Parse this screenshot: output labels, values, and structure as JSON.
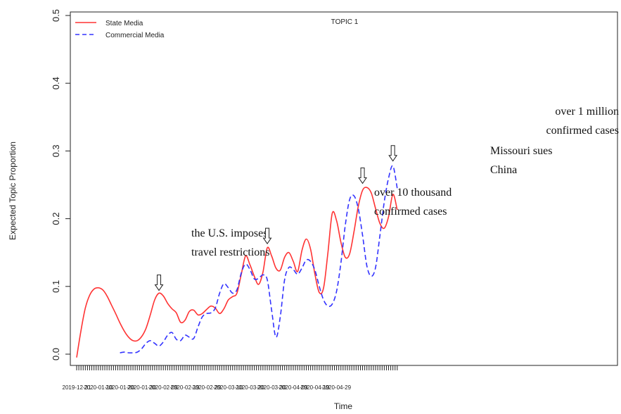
{
  "chart_data": {
    "type": "line",
    "title": "TOPIC 1",
    "xlabel": "Time",
    "ylabel": "Expected Topic Proportion",
    "ylim": [
      0.0,
      0.5
    ],
    "yticks": [
      "0.0",
      "0.1",
      "0.2",
      "0.3",
      "0.4",
      "0.5"
    ],
    "xticks": [
      "2019-12-31",
      "2020-01-10",
      "2020-01-20",
      "2020-01-30",
      "2020-02-09",
      "2020-02-19",
      "2020-02-29",
      "2020-03-10",
      "2020-03-20",
      "2020-03-30",
      "2020-04-09",
      "2020-04-19",
      "2020-04-29"
    ],
    "legend_position": "top-left",
    "series": [
      {
        "name": "State Media",
        "color": "#ff3333",
        "style": "solid",
        "points": [
          [
            "2019-12-31",
            -0.005
          ],
          [
            "2020-01-02",
            0.035
          ],
          [
            "2020-01-04",
            0.068
          ],
          [
            "2020-01-06",
            0.087
          ],
          [
            "2020-01-08",
            0.096
          ],
          [
            "2020-01-10",
            0.098
          ],
          [
            "2020-01-12",
            0.095
          ],
          [
            "2020-01-14",
            0.086
          ],
          [
            "2020-01-16",
            0.073
          ],
          [
            "2020-01-18",
            0.06
          ],
          [
            "2020-01-20",
            0.046
          ],
          [
            "2020-01-22",
            0.034
          ],
          [
            "2020-01-24",
            0.025
          ],
          [
            "2020-01-26",
            0.02
          ],
          [
            "2020-01-28",
            0.02
          ],
          [
            "2020-01-30",
            0.026
          ],
          [
            "2020-02-01",
            0.038
          ],
          [
            "2020-02-03",
            0.058
          ],
          [
            "2020-02-05",
            0.08
          ],
          [
            "2020-02-07",
            0.09
          ],
          [
            "2020-02-09",
            0.086
          ],
          [
            "2020-02-11",
            0.075
          ],
          [
            "2020-02-13",
            0.067
          ],
          [
            "2020-02-15",
            0.061
          ],
          [
            "2020-02-17",
            0.047
          ],
          [
            "2020-02-19",
            0.05
          ],
          [
            "2020-02-21",
            0.063
          ],
          [
            "2020-02-23",
            0.065
          ],
          [
            "2020-02-25",
            0.058
          ],
          [
            "2020-02-27",
            0.06
          ],
          [
            "2020-02-29",
            0.066
          ],
          [
            "2020-03-02",
            0.071
          ],
          [
            "2020-03-04",
            0.068
          ],
          [
            "2020-03-06",
            0.06
          ],
          [
            "2020-03-08",
            0.067
          ],
          [
            "2020-03-10",
            0.08
          ],
          [
            "2020-03-12",
            0.085
          ],
          [
            "2020-03-14",
            0.09
          ],
          [
            "2020-03-16",
            0.118
          ],
          [
            "2020-03-18",
            0.145
          ],
          [
            "2020-03-20",
            0.132
          ],
          [
            "2020-03-22",
            0.115
          ],
          [
            "2020-03-24",
            0.103
          ],
          [
            "2020-03-26",
            0.121
          ],
          [
            "2020-03-28",
            0.157
          ],
          [
            "2020-03-30",
            0.145
          ],
          [
            "2020-04-01",
            0.127
          ],
          [
            "2020-04-03",
            0.124
          ],
          [
            "2020-04-05",
            0.143
          ],
          [
            "2020-04-07",
            0.15
          ],
          [
            "2020-04-09",
            0.137
          ],
          [
            "2020-04-11",
            0.122
          ],
          [
            "2020-04-13",
            0.153
          ],
          [
            "2020-04-15",
            0.17
          ],
          [
            "2020-04-17",
            0.155
          ],
          [
            "2020-04-19",
            0.118
          ],
          [
            "2020-04-21",
            0.091
          ],
          [
            "2020-04-23",
            0.098
          ],
          [
            "2020-04-25",
            0.15
          ],
          [
            "2020-04-27",
            0.208
          ],
          [
            "2020-04-29",
            0.197
          ],
          [
            "2020-05-01",
            0.165
          ],
          [
            "2020-05-03",
            0.143
          ],
          [
            "2020-05-05",
            0.148
          ],
          [
            "2020-05-07",
            0.18
          ],
          [
            "2020-05-09",
            0.218
          ],
          [
            "2020-05-11",
            0.242
          ],
          [
            "2020-05-13",
            0.246
          ],
          [
            "2020-05-15",
            0.238
          ],
          [
            "2020-05-17",
            0.215
          ],
          [
            "2020-05-19",
            0.193
          ],
          [
            "2020-05-21",
            0.186
          ],
          [
            "2020-05-23",
            0.203
          ],
          [
            "2020-05-25",
            0.236
          ],
          [
            "2020-05-27",
            0.213
          ]
        ]
      },
      {
        "name": "Commercial Media",
        "color": "#3333ff",
        "style": "dashed",
        "points": [
          [
            "2020-01-20",
            0.002
          ],
          [
            "2020-01-22",
            0.003
          ],
          [
            "2020-01-24",
            0.002
          ],
          [
            "2020-01-26",
            0.002
          ],
          [
            "2020-01-28",
            0.003
          ],
          [
            "2020-01-30",
            0.008
          ],
          [
            "2020-02-01",
            0.016
          ],
          [
            "2020-02-03",
            0.02
          ],
          [
            "2020-02-05",
            0.016
          ],
          [
            "2020-02-07",
            0.012
          ],
          [
            "2020-02-09",
            0.018
          ],
          [
            "2020-02-11",
            0.028
          ],
          [
            "2020-02-13",
            0.032
          ],
          [
            "2020-02-15",
            0.022
          ],
          [
            "2020-02-17",
            0.02
          ],
          [
            "2020-02-19",
            0.028
          ],
          [
            "2020-02-21",
            0.025
          ],
          [
            "2020-02-23",
            0.023
          ],
          [
            "2020-02-25",
            0.04
          ],
          [
            "2020-02-27",
            0.055
          ],
          [
            "2020-02-29",
            0.06
          ],
          [
            "2020-03-02",
            0.061
          ],
          [
            "2020-03-04",
            0.068
          ],
          [
            "2020-03-06",
            0.09
          ],
          [
            "2020-03-08",
            0.104
          ],
          [
            "2020-03-10",
            0.098
          ],
          [
            "2020-03-12",
            0.09
          ],
          [
            "2020-03-14",
            0.095
          ],
          [
            "2020-03-16",
            0.12
          ],
          [
            "2020-03-18",
            0.133
          ],
          [
            "2020-03-20",
            0.125
          ],
          [
            "2020-03-22",
            0.111
          ],
          [
            "2020-03-24",
            0.112
          ],
          [
            "2020-03-26",
            0.117
          ],
          [
            "2020-03-28",
            0.11
          ],
          [
            "2020-03-30",
            0.065
          ],
          [
            "2020-04-01",
            0.025
          ],
          [
            "2020-04-03",
            0.055
          ],
          [
            "2020-04-05",
            0.11
          ],
          [
            "2020-04-07",
            0.128
          ],
          [
            "2020-04-09",
            0.125
          ],
          [
            "2020-04-11",
            0.118
          ],
          [
            "2020-04-13",
            0.127
          ],
          [
            "2020-04-15",
            0.139
          ],
          [
            "2020-04-17",
            0.137
          ],
          [
            "2020-04-19",
            0.124
          ],
          [
            "2020-04-21",
            0.1
          ],
          [
            "2020-04-23",
            0.08
          ],
          [
            "2020-04-25",
            0.071
          ],
          [
            "2020-04-27",
            0.074
          ],
          [
            "2020-04-29",
            0.093
          ],
          [
            "2020-05-01",
            0.135
          ],
          [
            "2020-05-03",
            0.19
          ],
          [
            "2020-05-05",
            0.228
          ],
          [
            "2020-05-07",
            0.234
          ],
          [
            "2020-05-09",
            0.215
          ],
          [
            "2020-05-11",
            0.175
          ],
          [
            "2020-05-13",
            0.13
          ],
          [
            "2020-05-15",
            0.115
          ],
          [
            "2020-05-17",
            0.128
          ],
          [
            "2020-05-19",
            0.175
          ],
          [
            "2020-05-21",
            0.225
          ],
          [
            "2020-05-23",
            0.26
          ],
          [
            "2020-05-25",
            0.278
          ],
          [
            "2020-05-27",
            0.245
          ]
        ]
      }
    ],
    "annotations": [
      {
        "lines": [
          "the U.S. imposes",
          "travel restrictions"
        ],
        "arrow_x": "2020-02-07",
        "arrow_y": 0.091
      },
      {
        "lines": [
          "over 10 thousand",
          "confirmed cases"
        ],
        "arrow_x": "2020-03-28",
        "arrow_y": 0.16
      },
      {
        "lines": [
          "Missouri sues",
          "China"
        ],
        "arrow_x": "2020-05-11",
        "arrow_y": 0.249
      },
      {
        "lines": [
          "over 1 million",
          "confirmed cases"
        ],
        "arrow_x": "2020-05-25",
        "arrow_y": 0.282
      }
    ]
  }
}
